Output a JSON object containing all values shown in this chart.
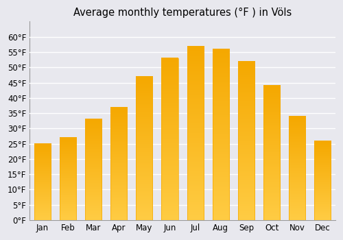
{
  "title": "Average monthly temperatures (°F ) in Völs",
  "months": [
    "Jan",
    "Feb",
    "Mar",
    "Apr",
    "May",
    "Jun",
    "Jul",
    "Aug",
    "Sep",
    "Oct",
    "Nov",
    "Dec"
  ],
  "values": [
    25,
    27,
    33,
    37,
    47,
    53,
    57,
    56,
    52,
    44,
    34,
    26
  ],
  "ylim": [
    0,
    65
  ],
  "yticks": [
    0,
    5,
    10,
    15,
    20,
    25,
    30,
    35,
    40,
    45,
    50,
    55,
    60
  ],
  "ytick_labels": [
    "0°F",
    "5°F",
    "10°F",
    "15°F",
    "20°F",
    "25°F",
    "30°F",
    "35°F",
    "40°F",
    "45°F",
    "50°F",
    "55°F",
    "60°F"
  ],
  "bar_color_light": "#FFCC44",
  "bar_color_dark": "#F5A800",
  "background_color": "#E8E8EE",
  "grid_color": "#ffffff",
  "title_fontsize": 10.5,
  "tick_fontsize": 8.5,
  "figure_bg": "#E8E8EE",
  "bar_width": 0.65,
  "figwidth": 5.0,
  "figheight": 3.5,
  "dpi": 100
}
